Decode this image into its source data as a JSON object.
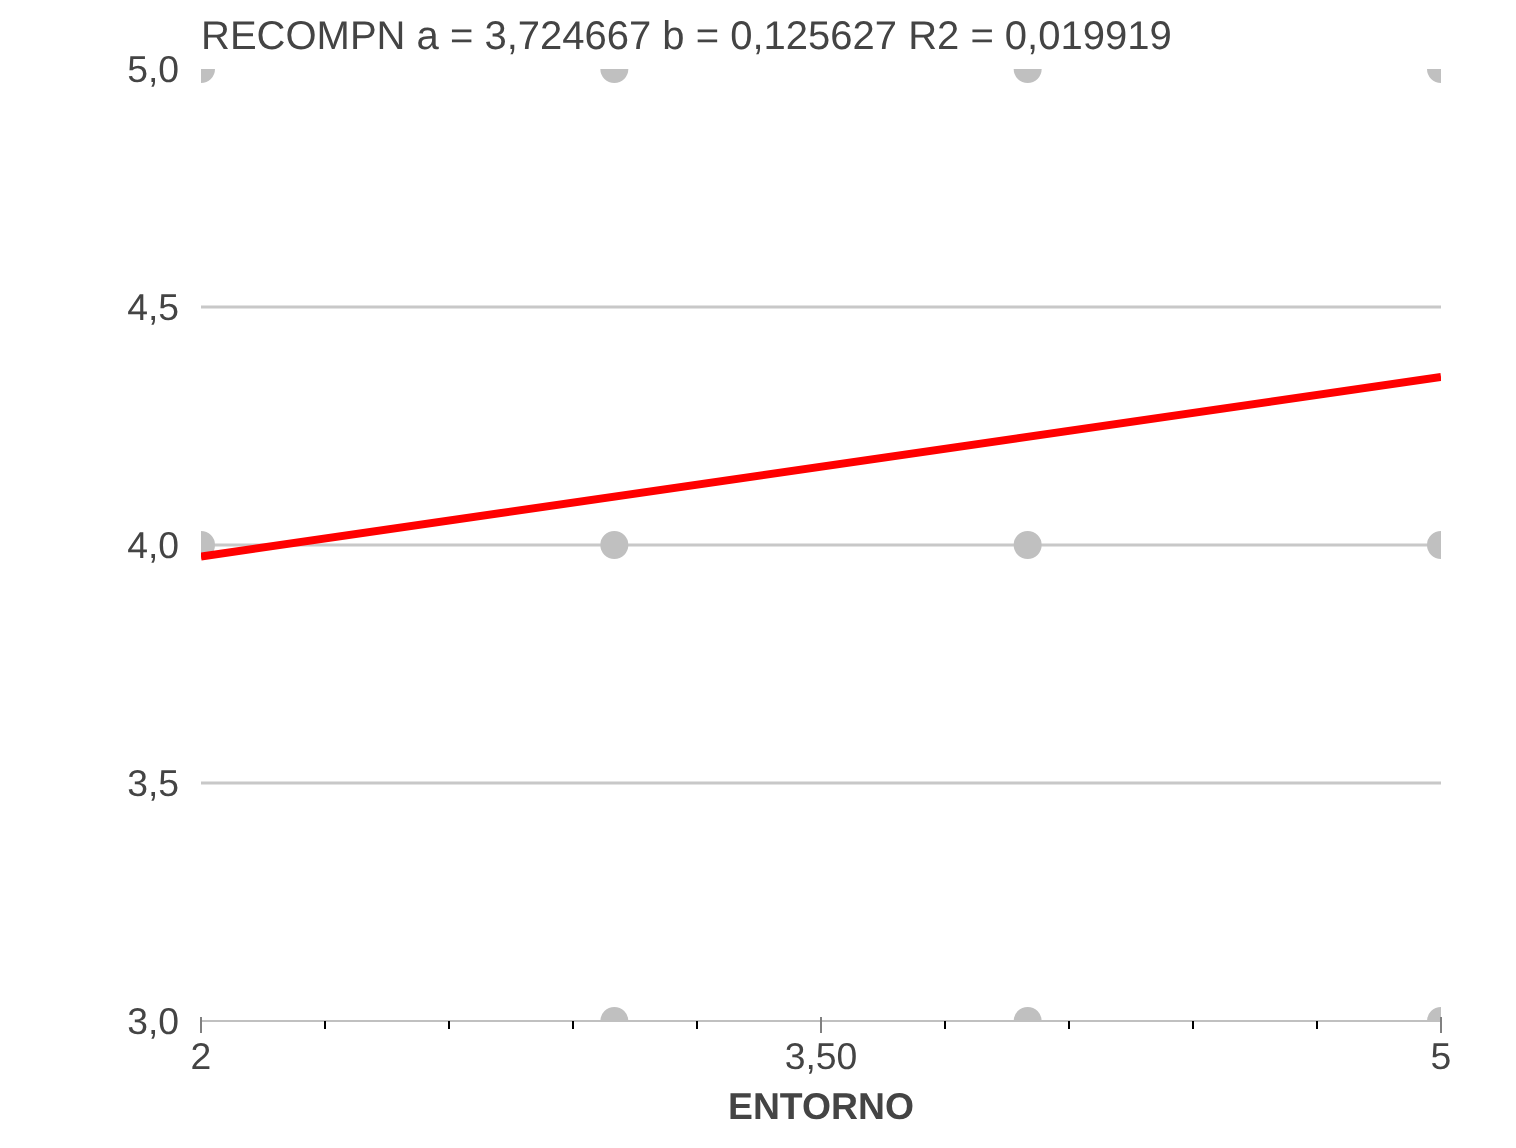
{
  "chart_data": {
    "type": "scatter",
    "title": "RECOMPN  a = 3,724667      b = 0,125627      R2 = 0,019919",
    "xlabel": "ENTORNO",
    "series": [
      {
        "marker": "circle",
        "color": "#c0c0c0",
        "x": [
          2,
          3,
          4,
          5,
          2,
          3,
          4,
          5,
          3,
          4,
          5
        ],
        "values": [
          5,
          5,
          5,
          5,
          4,
          4,
          4,
          4,
          3,
          3,
          3
        ]
      },
      {
        "type": "line",
        "color": "#ff0000",
        "x": [
          2,
          5
        ],
        "values": [
          3.976,
          4.353
        ]
      }
    ],
    "xlim": [
      2,
      5
    ],
    "xticks": [
      2,
      {
        "value": 3.5,
        "label": "3,50"
      },
      5
    ],
    "ylim": [
      3,
      5
    ],
    "yticks": [
      {
        "value": 3,
        "label": "3,0"
      },
      {
        "value": 3.5,
        "label": "3,5"
      },
      {
        "value": 4,
        "label": "4,0"
      },
      {
        "value": 4.5,
        "label": "4,5"
      },
      {
        "value": 5,
        "label": "5,0"
      }
    ],
    "grid": "y",
    "line_style": "solid"
  }
}
